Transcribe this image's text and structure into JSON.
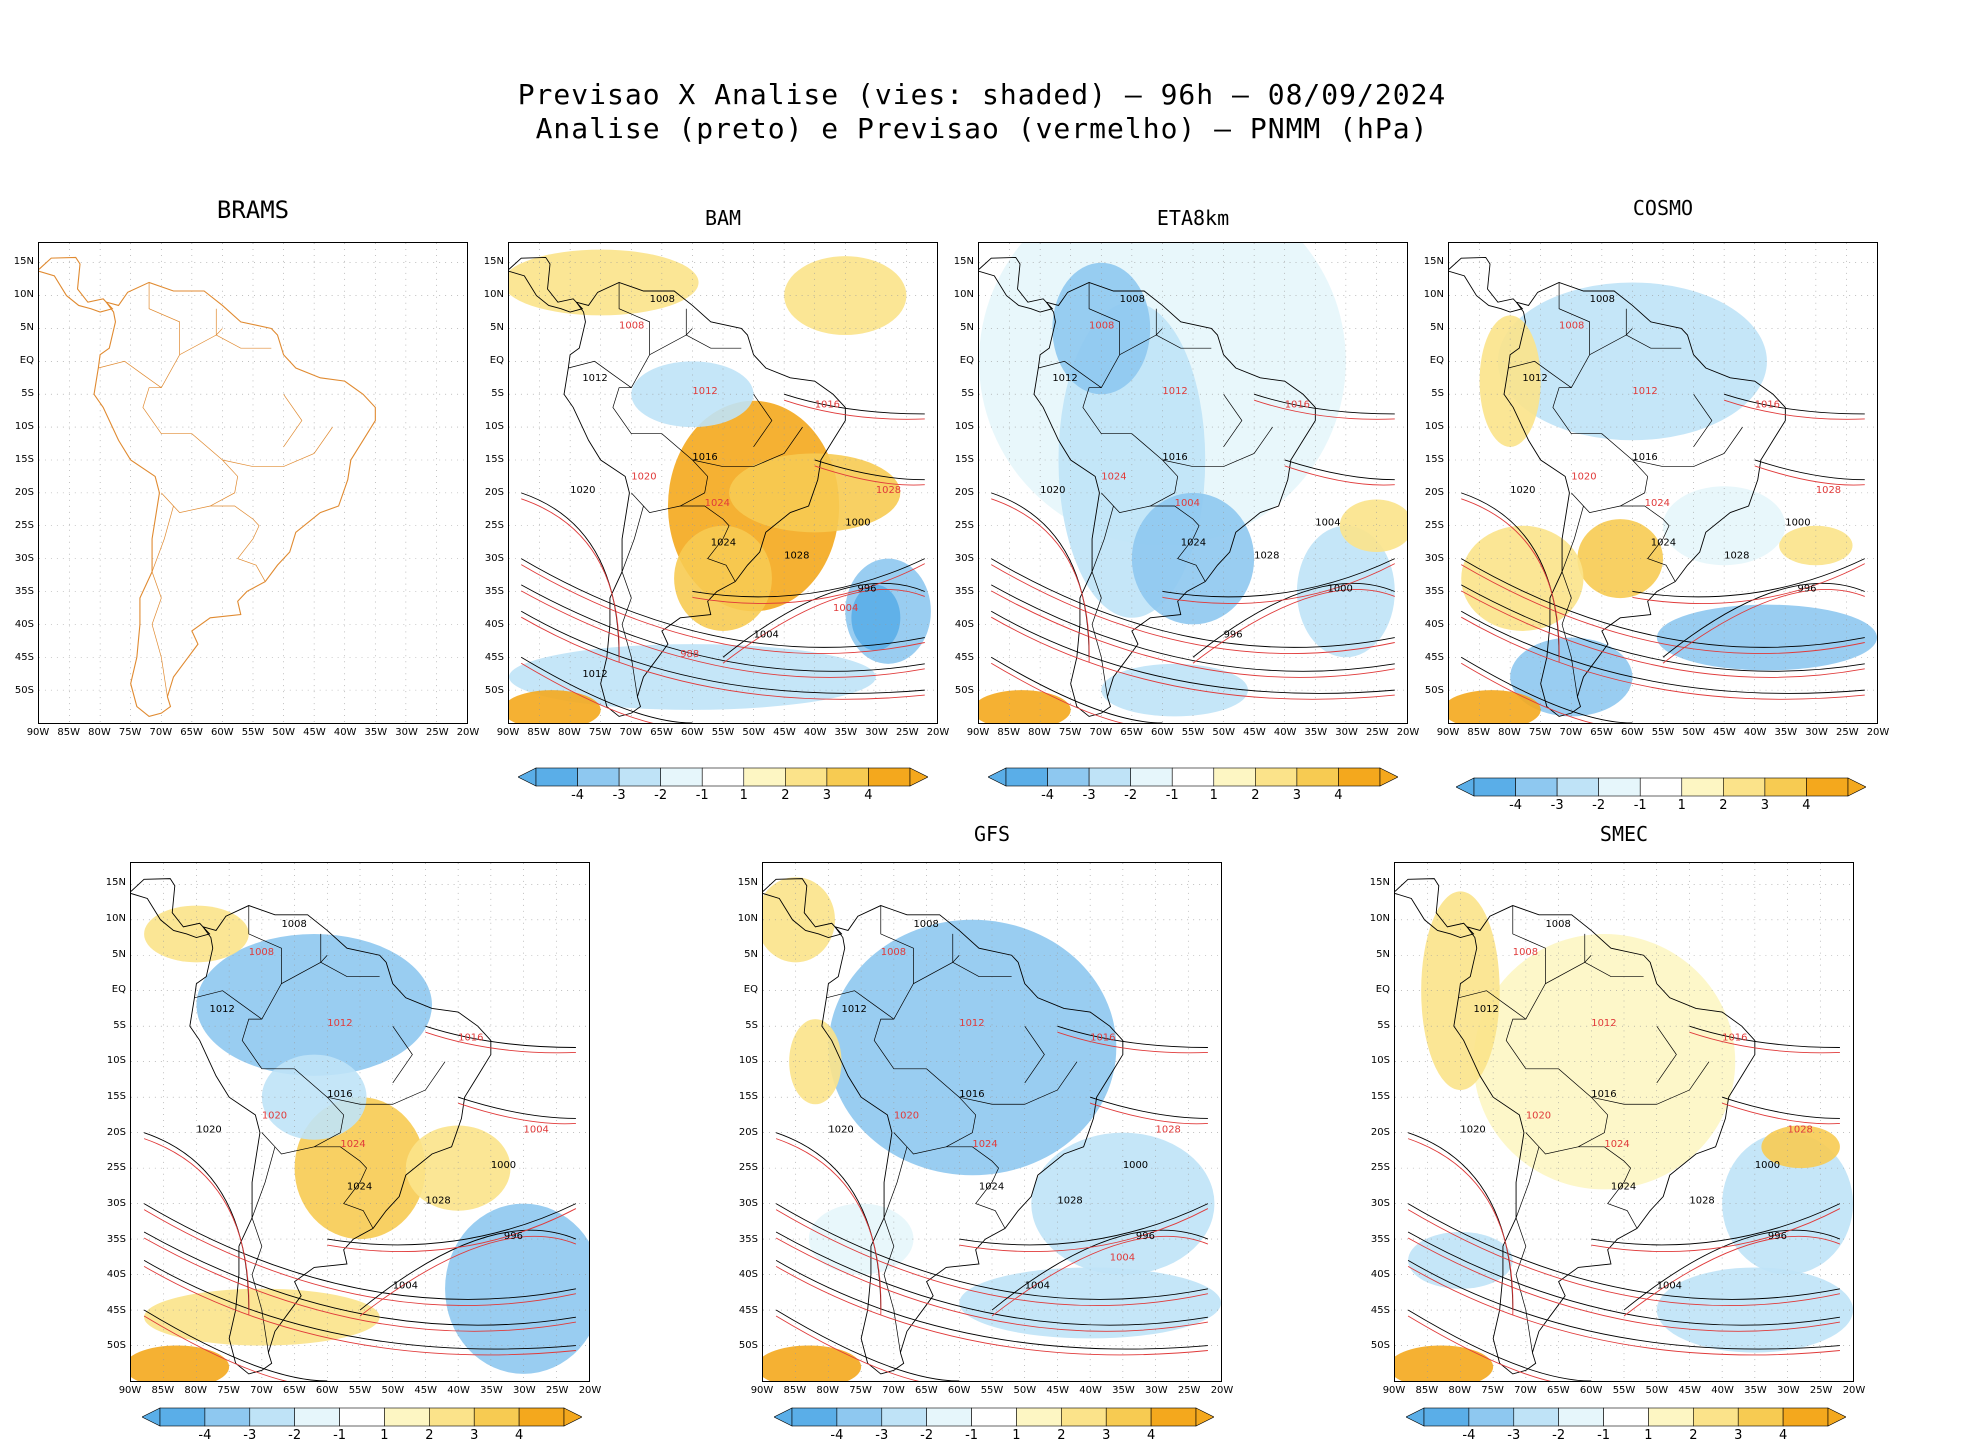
{
  "figure": {
    "title_line1": "Previsao X Analise (vies: shaded) — 96h — 08/09/2024",
    "title_line2": "Analise (preto) e Previsao (vermelho) — PNMM (hPa)"
  },
  "colors": {
    "neg4": "#5aaee8",
    "neg3": "#8ec8f0",
    "neg2": "#bfe3f7",
    "neg1": "#e6f6fb",
    "neutral": "#ffffff",
    "pos1": "#fdf6c3",
    "pos2": "#fbe38a",
    "pos3": "#f7cb52",
    "pos4": "#f4a81d",
    "analysis": "#000000",
    "forecast": "#e03a3a",
    "coast_brams": "#e08a30"
  },
  "chart_data": {
    "type": "heatmap",
    "x_ticks": [
      "90W",
      "85W",
      "80W",
      "75W",
      "70W",
      "65W",
      "60W",
      "55W",
      "50W",
      "45W",
      "40W",
      "35W",
      "30W",
      "25W",
      "20W"
    ],
    "y_ticks": [
      "15N",
      "10N",
      "5N",
      "EQ",
      "5S",
      "10S",
      "15S",
      "20S",
      "25S",
      "30S",
      "35S",
      "40S",
      "45S",
      "50S"
    ],
    "lon_range": [
      -90,
      -20
    ],
    "lat_range": [
      -55,
      18
    ],
    "colorbar_labels": [
      "-4",
      "-3",
      "-2",
      "-1",
      "1",
      "2",
      "3",
      "4"
    ],
    "panels": [
      {
        "name": "BRAMS",
        "colorbar": false,
        "contour_labels_black": [],
        "contour_labels_red": []
      },
      {
        "name": "BAM",
        "colorbar": true,
        "contour_labels_black": [
          "1008",
          "1012",
          "1016",
          "1020",
          "1024",
          "1028",
          "1000",
          "996",
          "1004",
          "1012"
        ],
        "contour_labels_red": [
          "1008",
          "1012",
          "1016",
          "1020",
          "1024",
          "1028",
          "1004",
          "988"
        ]
      },
      {
        "name": "ETA8km",
        "colorbar": true,
        "contour_labels_black": [
          "1008",
          "1012",
          "1016",
          "1020",
          "1024",
          "1028",
          "1004",
          "1000",
          "996"
        ],
        "contour_labels_red": [
          "1008",
          "1012",
          "1016",
          "1024",
          "1004"
        ]
      },
      {
        "name": "COSMO",
        "colorbar": true,
        "contour_labels_black": [
          "1008",
          "1012",
          "1016",
          "1020",
          "1024",
          "1028",
          "1000",
          "996"
        ],
        "contour_labels_red": [
          "1008",
          "1012",
          "1016",
          "1020",
          "1024",
          "1028"
        ]
      },
      {
        "name": "",
        "colorbar": true,
        "contour_labels_black": [
          "1008",
          "1012",
          "1016",
          "1020",
          "1024",
          "1028",
          "1000",
          "996",
          "1004"
        ],
        "contour_labels_red": [
          "1008",
          "1012",
          "1016",
          "1020",
          "1024",
          "1004"
        ]
      },
      {
        "name": "GFS",
        "colorbar": true,
        "contour_labels_black": [
          "1008",
          "1012",
          "1016",
          "1020",
          "1024",
          "1028",
          "1000",
          "996",
          "1004"
        ],
        "contour_labels_red": [
          "1008",
          "1012",
          "1016",
          "1020",
          "1024",
          "1028",
          "1004"
        ]
      },
      {
        "name": "SMEC",
        "colorbar": true,
        "contour_labels_black": [
          "1008",
          "1012",
          "1016",
          "1020",
          "1024",
          "1028",
          "1000",
          "996",
          "1004"
        ],
        "contour_labels_red": [
          "1008",
          "1012",
          "1016",
          "1020",
          "1024",
          "1028"
        ]
      }
    ]
  }
}
